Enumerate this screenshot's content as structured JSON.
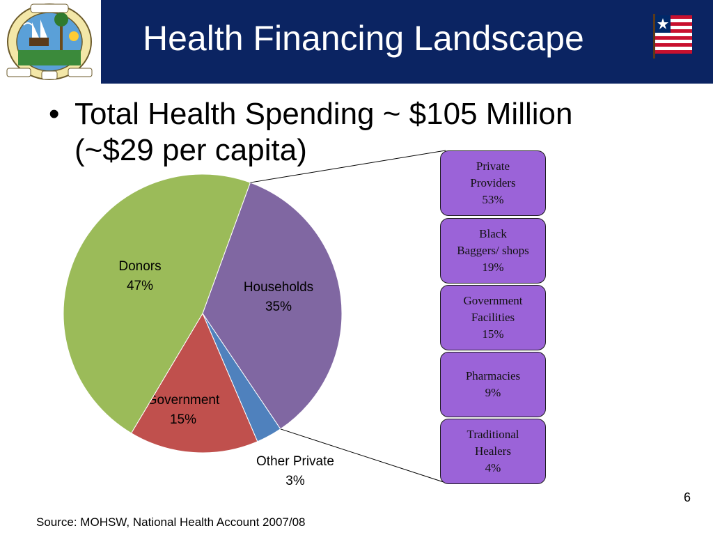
{
  "header": {
    "title": "Health Financing Landscape",
    "band_color": "#0b2462",
    "seal_icon": "liberia-seal-icon",
    "flag_icon": "liberia-flag-icon"
  },
  "bullet": {
    "text": "Total Health Spending ~ $105 Million (~$29 per capita)"
  },
  "chart_data": [
    {
      "type": "pie",
      "slices": [
        {
          "label": "Households",
          "value": 35,
          "display": "35%",
          "color": "#8067a2"
        },
        {
          "label": "Other Private",
          "value": 3,
          "display": "3%",
          "color": "#4f81bd"
        },
        {
          "label": "Government",
          "value": 15,
          "display": "15%",
          "color": "#c0504d"
        },
        {
          "label": "Donors",
          "value": 47,
          "display": "47%",
          "color": "#9bbb59"
        }
      ]
    },
    {
      "type": "table",
      "breakdown_of": "Households",
      "items": [
        {
          "lines": [
            "Private",
            "Providers",
            "53%"
          ],
          "value": 53
        },
        {
          "lines": [
            "Black",
            "Baggers/ shops",
            "19%"
          ],
          "value": 19
        },
        {
          "lines": [
            "Government",
            "Facilities",
            "15%"
          ],
          "value": 15
        },
        {
          "lines": [
            "Pharmacies",
            "9%"
          ],
          "value": 9
        },
        {
          "lines": [
            "Traditional",
            "Healers",
            "4%"
          ],
          "value": 4
        }
      ],
      "box_color": "#9b63d8"
    }
  ],
  "footer": {
    "source": "Source: MOHSW, National Health Account 2007/08",
    "page_number": "6"
  }
}
